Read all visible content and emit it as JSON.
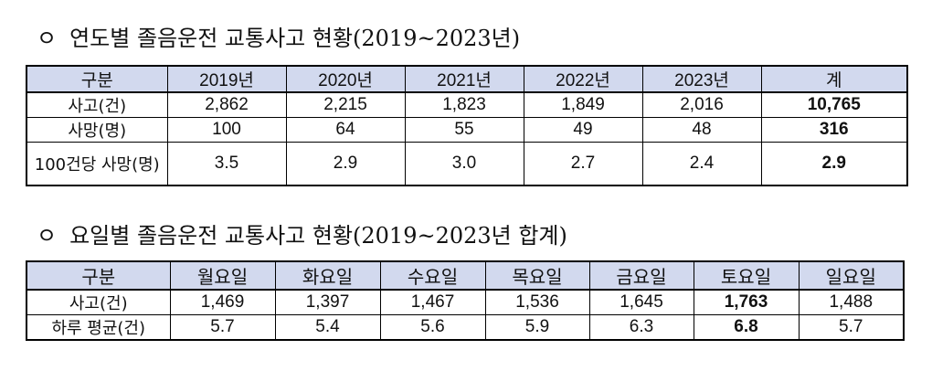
{
  "section1": {
    "bullet": "ㅇ",
    "title": "연도별 졸음운전 교통사고 현황(2019~2023년)",
    "headers": [
      "구분",
      "2019년",
      "2020년",
      "2021년",
      "2022년",
      "2023년",
      "계"
    ],
    "rows": [
      [
        "사고(건)",
        "2,862",
        "2,215",
        "1,823",
        "1,849",
        "2,016",
        "10,765"
      ],
      [
        "사망(명)",
        "100",
        "64",
        "55",
        "49",
        "48",
        "316"
      ],
      [
        "100건당 사망(명)",
        "3.5",
        "2.9",
        "3.0",
        "2.7",
        "2.4",
        "2.9"
      ]
    ]
  },
  "section2": {
    "bullet": "ㅇ",
    "title": "요일별 졸음운전 교통사고 현황(2019~2023년 합계)",
    "headers": [
      "구분",
      "월요일",
      "화요일",
      "수요일",
      "목요일",
      "금요일",
      "토요일",
      "일요일"
    ],
    "rows": [
      [
        "사고(건)",
        "1,469",
        "1,397",
        "1,467",
        "1,536",
        "1,645",
        "1,763",
        "1,488"
      ],
      [
        "하루 평균(건)",
        "5.7",
        "5.4",
        "5.6",
        "5.9",
        "6.3",
        "6.8",
        "5.7"
      ]
    ]
  },
  "colors": {
    "header_bg": "#d2d9ee",
    "border": "#000000"
  }
}
